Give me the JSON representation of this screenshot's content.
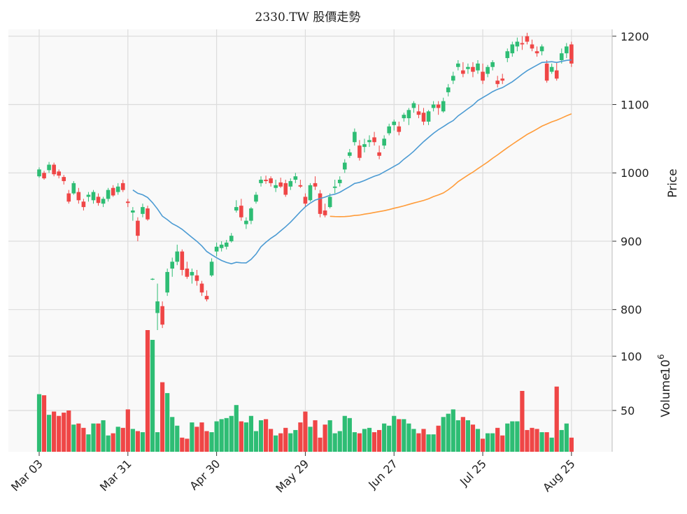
{
  "chart_data": {
    "type": "candlestick",
    "title": "2330.TW 股價走勢",
    "price_axis": {
      "label": "Price",
      "ylim": [
        770,
        1210
      ],
      "ticks": [
        800,
        900,
        1000,
        1100,
        1200
      ],
      "position": "right"
    },
    "volume_axis": {
      "label": "Volume",
      "exponent_label": "10",
      "exponent": "6",
      "ylim": [
        12,
        124
      ],
      "ticks": [
        50,
        100
      ],
      "unit": "millions"
    },
    "x_ticks": [
      "Mar 03",
      "Mar 31",
      "Apr 30",
      "May 29",
      "Jun 27",
      "Jul 25",
      "Aug 25"
    ],
    "x_tick_index": [
      0,
      18,
      36,
      54,
      72,
      90,
      108
    ],
    "up_color": "#2ebd74",
    "down_color": "#ef4646",
    "ma_colors": [
      "#4c9bd3",
      "#ff9c3a"
    ],
    "ma_windows": [
      20,
      60
    ],
    "grid": true,
    "background": "#f9f9f9",
    "candles": [
      [
        995,
        1008,
        993,
        1005,
        65
      ],
      [
        1000,
        1003,
        990,
        992,
        64
      ],
      [
        1004,
        1016,
        1000,
        1012,
        46
      ],
      [
        1012,
        1015,
        995,
        998,
        49
      ],
      [
        1002,
        1005,
        992,
        996,
        45
      ],
      [
        994,
        997,
        983,
        988,
        48
      ],
      [
        970,
        975,
        955,
        958,
        50
      ],
      [
        970,
        988,
        968,
        985,
        37
      ],
      [
        972,
        978,
        955,
        960,
        38
      ],
      [
        958,
        962,
        945,
        950,
        34
      ],
      [
        965,
        972,
        958,
        968,
        28
      ],
      [
        960,
        975,
        955,
        972,
        38
      ],
      [
        965,
        970,
        952,
        956,
        38
      ],
      [
        955,
        965,
        950,
        962,
        41
      ],
      [
        962,
        978,
        958,
        975,
        27
      ],
      [
        978,
        982,
        965,
        967,
        29
      ],
      [
        972,
        985,
        968,
        980,
        35
      ],
      [
        985,
        990,
        972,
        975,
        34
      ],
      [
        958,
        962,
        950,
        956,
        51
      ],
      [
        942,
        950,
        930,
        945,
        33
      ],
      [
        930,
        935,
        900,
        908,
        31
      ],
      [
        940,
        955,
        935,
        950,
        30
      ],
      [
        948,
        952,
        930,
        932,
        124
      ],
      [
        845,
        846,
        843,
        845,
        115
      ],
      [
        795,
        838,
        770,
        812,
        30
      ],
      [
        805,
        812,
        773,
        778,
        76
      ],
      [
        825,
        860,
        820,
        855,
        66
      ],
      [
        860,
        876,
        848,
        870,
        44
      ],
      [
        870,
        895,
        865,
        885,
        36
      ],
      [
        885,
        888,
        850,
        858,
        25
      ],
      [
        860,
        870,
        845,
        848,
        24
      ],
      [
        850,
        860,
        838,
        855,
        39
      ],
      [
        850,
        858,
        835,
        842,
        35
      ],
      [
        838,
        842,
        820,
        825,
        39
      ],
      [
        820,
        828,
        812,
        815,
        31
      ],
      [
        850,
        875,
        848,
        870,
        30
      ],
      [
        885,
        898,
        878,
        892,
        40
      ],
      [
        890,
        900,
        885,
        895,
        42
      ],
      [
        892,
        902,
        888,
        898,
        43
      ],
      [
        900,
        912,
        898,
        908,
        45
      ],
      [
        945,
        960,
        942,
        950,
        55
      ],
      [
        952,
        962,
        930,
        935,
        40
      ],
      [
        925,
        935,
        918,
        930,
        39
      ],
      [
        930,
        950,
        925,
        948,
        45
      ],
      [
        958,
        972,
        955,
        968,
        31
      ],
      [
        985,
        995,
        980,
        990,
        41
      ],
      [
        990,
        996,
        984,
        988,
        42
      ],
      [
        992,
        995,
        980,
        985,
        33
      ],
      [
        978,
        990,
        972,
        982,
        27
      ],
      [
        986,
        993,
        978,
        980,
        29
      ],
      [
        985,
        990,
        965,
        968,
        34
      ],
      [
        980,
        992,
        975,
        988,
        29
      ],
      [
        990,
        1000,
        985,
        995,
        32
      ],
      [
        982,
        990,
        978,
        980,
        39
      ],
      [
        965,
        970,
        950,
        955,
        49
      ],
      [
        960,
        985,
        958,
        982,
        35
      ],
      [
        985,
        995,
        975,
        980,
        41
      ],
      [
        970,
        975,
        935,
        940,
        25
      ],
      [
        945,
        955,
        935,
        938,
        37
      ],
      [
        950,
        970,
        948,
        965,
        41
      ],
      [
        978,
        990,
        970,
        980,
        29
      ],
      [
        985,
        995,
        980,
        990,
        31
      ],
      [
        1005,
        1020,
        1000,
        1015,
        45
      ],
      [
        1025,
        1035,
        1022,
        1030,
        43
      ],
      [
        1045,
        1065,
        1040,
        1060,
        30
      ],
      [
        1040,
        1048,
        1018,
        1022,
        29
      ],
      [
        1038,
        1050,
        1030,
        1042,
        33
      ],
      [
        1045,
        1055,
        1038,
        1048,
        34
      ],
      [
        1052,
        1060,
        1040,
        1045,
        30
      ],
      [
        1030,
        1040,
        1020,
        1025,
        32
      ],
      [
        1040,
        1055,
        1035,
        1050,
        38
      ],
      [
        1058,
        1072,
        1055,
        1068,
        36
      ],
      [
        1070,
        1078,
        1062,
        1075,
        45
      ],
      [
        1068,
        1075,
        1055,
        1060,
        42
      ],
      [
        1080,
        1088,
        1075,
        1085,
        42
      ],
      [
        1080,
        1095,
        1070,
        1092,
        38
      ],
      [
        1095,
        1105,
        1088,
        1102,
        33
      ],
      [
        1090,
        1100,
        1080,
        1085,
        29
      ],
      [
        1088,
        1095,
        1070,
        1075,
        33
      ],
      [
        1075,
        1092,
        1070,
        1090,
        28
      ],
      [
        1095,
        1105,
        1090,
        1100,
        28
      ],
      [
        1100,
        1105,
        1085,
        1095,
        36
      ],
      [
        1090,
        1110,
        1088,
        1105,
        44
      ],
      [
        1118,
        1130,
        1112,
        1125,
        47
      ],
      [
        1135,
        1148,
        1130,
        1142,
        51
      ],
      [
        1155,
        1165,
        1150,
        1160,
        41
      ],
      [
        1150,
        1162,
        1140,
        1145,
        44
      ],
      [
        1152,
        1160,
        1145,
        1155,
        41
      ],
      [
        1155,
        1162,
        1140,
        1148,
        37
      ],
      [
        1150,
        1165,
        1145,
        1160,
        33
      ],
      [
        1148,
        1160,
        1130,
        1135,
        24
      ],
      [
        1145,
        1158,
        1140,
        1155,
        29
      ],
      [
        1155,
        1165,
        1150,
        1162,
        29
      ],
      [
        1135,
        1142,
        1125,
        1130,
        34
      ],
      [
        1138,
        1145,
        1130,
        1135,
        27
      ],
      [
        1168,
        1182,
        1162,
        1178,
        38
      ],
      [
        1175,
        1192,
        1170,
        1188,
        40
      ],
      [
        1185,
        1198,
        1178,
        1192,
        40
      ],
      [
        1190,
        1200,
        1180,
        1188,
        68
      ],
      [
        1200,
        1205,
        1188,
        1192,
        32
      ],
      [
        1188,
        1195,
        1178,
        1182,
        34
      ],
      [
        1178,
        1185,
        1170,
        1175,
        33
      ],
      [
        1178,
        1188,
        1172,
        1185,
        30
      ],
      [
        1160,
        1165,
        1132,
        1135,
        30
      ],
      [
        1148,
        1160,
        1145,
        1155,
        25
      ],
      [
        1150,
        1162,
        1135,
        1138,
        72
      ],
      [
        1165,
        1182,
        1160,
        1175,
        32
      ],
      [
        1175,
        1190,
        1168,
        1185,
        38
      ],
      [
        1188,
        1192,
        1155,
        1160,
        25
      ]
    ]
  }
}
